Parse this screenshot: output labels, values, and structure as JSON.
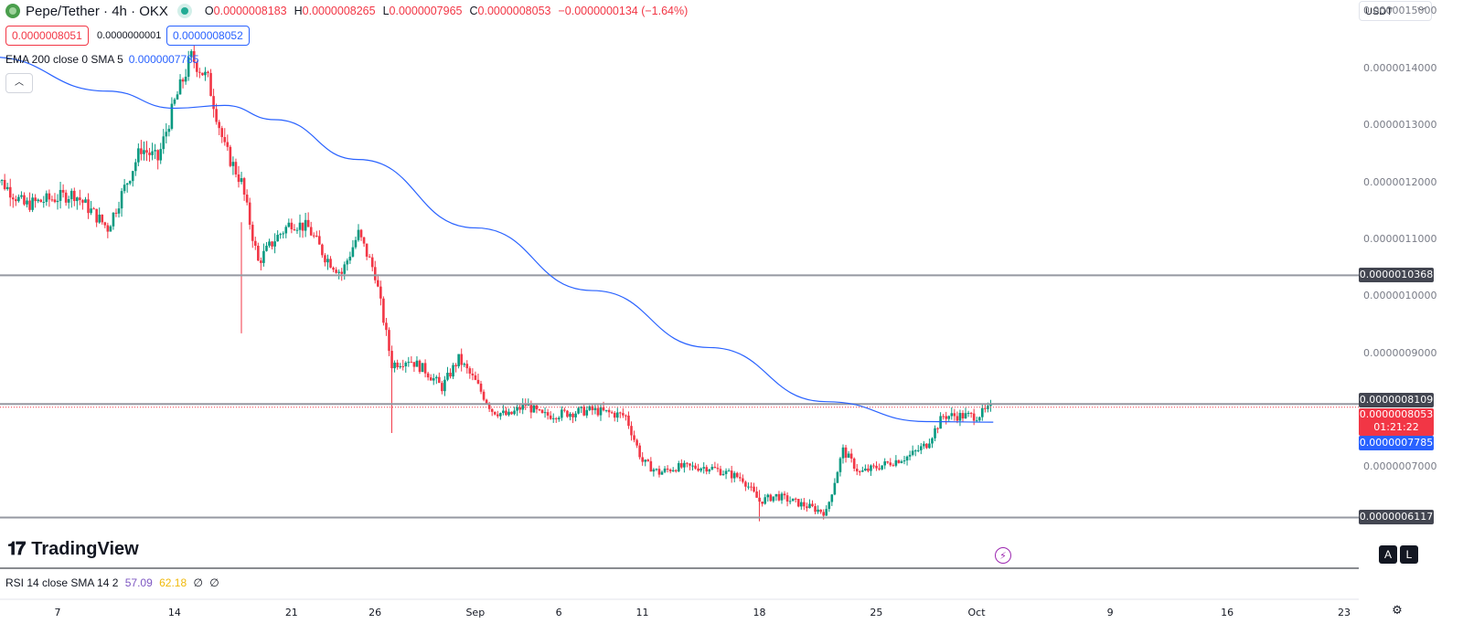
{
  "header": {
    "symbol": "Pepe/Tether · 4h · OKX",
    "open_label": "O",
    "open": "0.0000008183",
    "high_label": "H",
    "high": "0.0000008265",
    "low_label": "L",
    "low": "0.0000007965",
    "close_label": "C",
    "close": "0.0000008053",
    "change": "−0.0000000134 (−1.64%)",
    "sell_price": "0.0000008051",
    "spread": "0.0000000001",
    "buy_price": "0.0000008052",
    "collapse_icon": "chevron-up-icon"
  },
  "ema_legend": {
    "label": "EMA 200 close 0 SMA 5",
    "value": "0.0000007785"
  },
  "currency_select": {
    "value": "USDT",
    "icon": "chevron-down-icon"
  },
  "price_axis": {
    "ticks": [
      "0.0000015000",
      "0.0000014000",
      "0.0000013000",
      "0.0000012000",
      "0.0000011000",
      "0.0000010000",
      "0.0000009000",
      "0.0000007000"
    ],
    "labels": {
      "resistance": "0.0000010368",
      "level_mid": "0.0000008109",
      "current_price": "0.0000008053",
      "countdown": "01:21:22",
      "ema": "0.0000007785",
      "support": "0.0000006117"
    }
  },
  "brand": {
    "name": "TradingView",
    "icon": "tradingview-logo-icon"
  },
  "rsi_legend": {
    "label": "RSI 14 close SMA 14 2",
    "value1": "57.09",
    "value2": "62.18",
    "sym1": "∅",
    "sym2": "∅"
  },
  "time_axis": {
    "ticks": [
      "7",
      "14",
      "21",
      "26",
      "Sep",
      "6",
      "11",
      "18",
      "25",
      "Oct",
      "9",
      "16",
      "23"
    ]
  },
  "controls": {
    "auto_label": "A",
    "log_label": "L",
    "bolt_icon": "lightning-icon",
    "settings_icon": "gear-icon"
  },
  "colors": {
    "up": "#089981",
    "down": "#f23645",
    "ema": "#2962ff",
    "level_line": "#9598a1",
    "label_bg": "#434651"
  },
  "chart_data": {
    "type": "candlestick",
    "y_unit": "USDT",
    "ylim": [
      5.9e-07,
      1.52e-06
    ],
    "horizontal_levels": [
      1.0368e-06,
      8.109e-07,
      6.117e-07
    ],
    "current_price": 8.053e-07,
    "ema_200_anchors": [
      [
        "Aug 3",
        1.42e-06
      ],
      [
        "Aug 10",
        1.36e-06
      ],
      [
        "Aug 14",
        1.33e-06
      ],
      [
        "Aug 17",
        1.335e-06
      ],
      [
        "Aug 20",
        1.31e-06
      ],
      [
        "Aug 25",
        1.24e-06
      ],
      [
        "Sep 1",
        1.12e-06
      ],
      [
        "Sep 8",
        1.01e-06
      ],
      [
        "Sep 15",
        9.1e-07
      ],
      [
        "Sep 22",
        8.15e-07
      ],
      [
        "Sep 28",
        7.8e-07
      ],
      [
        "Oct 2",
        7.79e-07
      ]
    ],
    "price_path": [
      [
        "Aug 3",
        1.22e-06
      ],
      [
        "Aug 5",
        1.16e-06
      ],
      [
        "Aug 8",
        1.18e-06
      ],
      [
        "Aug 10",
        1.12e-06
      ],
      [
        "Aug 12",
        1.26e-06
      ],
      [
        "Aug 13",
        1.24e-06
      ],
      [
        "Aug 14",
        1.34e-06
      ],
      [
        "Aug 15",
        1.42e-06
      ],
      [
        "Aug 16",
        1.38e-06
      ],
      [
        "Aug 17",
        1.26e-06
      ],
      [
        "Aug 18",
        1.2e-06
      ],
      [
        "Aug 19",
        1.06e-06
      ],
      [
        "Aug 20",
        1.1e-06
      ],
      [
        "Aug 21",
        1.13e-06
      ],
      [
        "Aug 22",
        1.12e-06
      ],
      [
        "Aug 23",
        1.07e-06
      ],
      [
        "Aug 24",
        1.04e-06
      ],
      [
        "Aug 25",
        1.11e-06
      ],
      [
        "Aug 26",
        1.04e-06
      ],
      [
        "Aug 27",
        8.8e-07
      ],
      [
        "Aug 28",
        8.9e-07
      ],
      [
        "Aug 29",
        8.7e-07
      ],
      [
        "Aug 30",
        8.4e-07
      ],
      [
        "Aug 31",
        8.9e-07
      ],
      [
        "Sep 1",
        8.5e-07
      ],
      [
        "Sep 2",
        8e-07
      ],
      [
        "Sep 3",
        7.9e-07
      ],
      [
        "Sep 4",
        8.1e-07
      ],
      [
        "Sep 5",
        7.9e-07
      ],
      [
        "Sep 8",
        8e-07
      ],
      [
        "Sep 10",
        7.9e-07
      ],
      [
        "Sep 11",
        7.1e-07
      ],
      [
        "Sep 12",
        6.9e-07
      ],
      [
        "Sep 13",
        7e-07
      ],
      [
        "Sep 15",
        7e-07
      ],
      [
        "Sep 16",
        6.9e-07
      ],
      [
        "Sep 17",
        6.8e-07
      ],
      [
        "Sep 18",
        6.4e-07
      ],
      [
        "Sep 19",
        6.5e-07
      ],
      [
        "Sep 20",
        6.4e-07
      ],
      [
        "Sep 21",
        6.3e-07
      ],
      [
        "Sep 22",
        6.2e-07
      ],
      [
        "Sep 23",
        7.3e-07
      ],
      [
        "Sep 24",
        6.9e-07
      ],
      [
        "Sep 25",
        7e-07
      ],
      [
        "Sep 26",
        7.1e-07
      ],
      [
        "Sep 27",
        7.2e-07
      ],
      [
        "Sep 28",
        7.4e-07
      ],
      [
        "Sep 29",
        7.9e-07
      ],
      [
        "Sep 30",
        7.9e-07
      ],
      [
        "Oct 1",
        7.9e-07
      ],
      [
        "Oct 2",
        8.05e-07
      ]
    ]
  }
}
